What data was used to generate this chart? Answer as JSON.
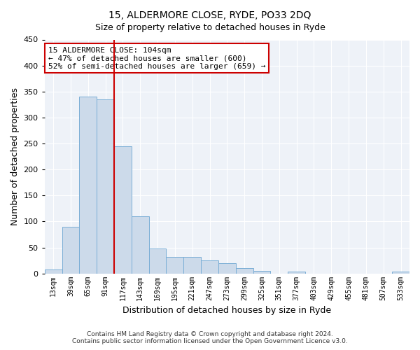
{
  "title1": "15, ALDERMORE CLOSE, RYDE, PO33 2DQ",
  "title2": "Size of property relative to detached houses in Ryde",
  "xlabel": "Distribution of detached houses by size in Ryde",
  "ylabel": "Number of detached properties",
  "bar_labels": [
    "13sqm",
    "39sqm",
    "65sqm",
    "91sqm",
    "117sqm",
    "143sqm",
    "169sqm",
    "195sqm",
    "221sqm",
    "247sqm",
    "273sqm",
    "299sqm",
    "325sqm",
    "351sqm",
    "377sqm",
    "403sqm",
    "429sqm",
    "455sqm",
    "481sqm",
    "507sqm",
    "533sqm"
  ],
  "bar_values": [
    7,
    90,
    340,
    335,
    245,
    110,
    48,
    32,
    32,
    25,
    20,
    10,
    5,
    0,
    3,
    0,
    0,
    0,
    0,
    0,
    3
  ],
  "bar_color": "#ccdaea",
  "bar_edge_color": "#7aaed6",
  "vline_color": "#cc0000",
  "annotation_title": "15 ALDERMORE CLOSE: 104sqm",
  "annotation_line1": "← 47% of detached houses are smaller (600)",
  "annotation_line2": "52% of semi-detached houses are larger (659) →",
  "annotation_box_edge": "#cc0000",
  "ylim": [
    0,
    450
  ],
  "yticks": [
    0,
    50,
    100,
    150,
    200,
    250,
    300,
    350,
    400,
    450
  ],
  "footer1": "Contains HM Land Registry data © Crown copyright and database right 2024.",
  "footer2": "Contains public sector information licensed under the Open Government Licence v3.0.",
  "bg_color": "#eef2f8",
  "grid_color": "#ffffff"
}
